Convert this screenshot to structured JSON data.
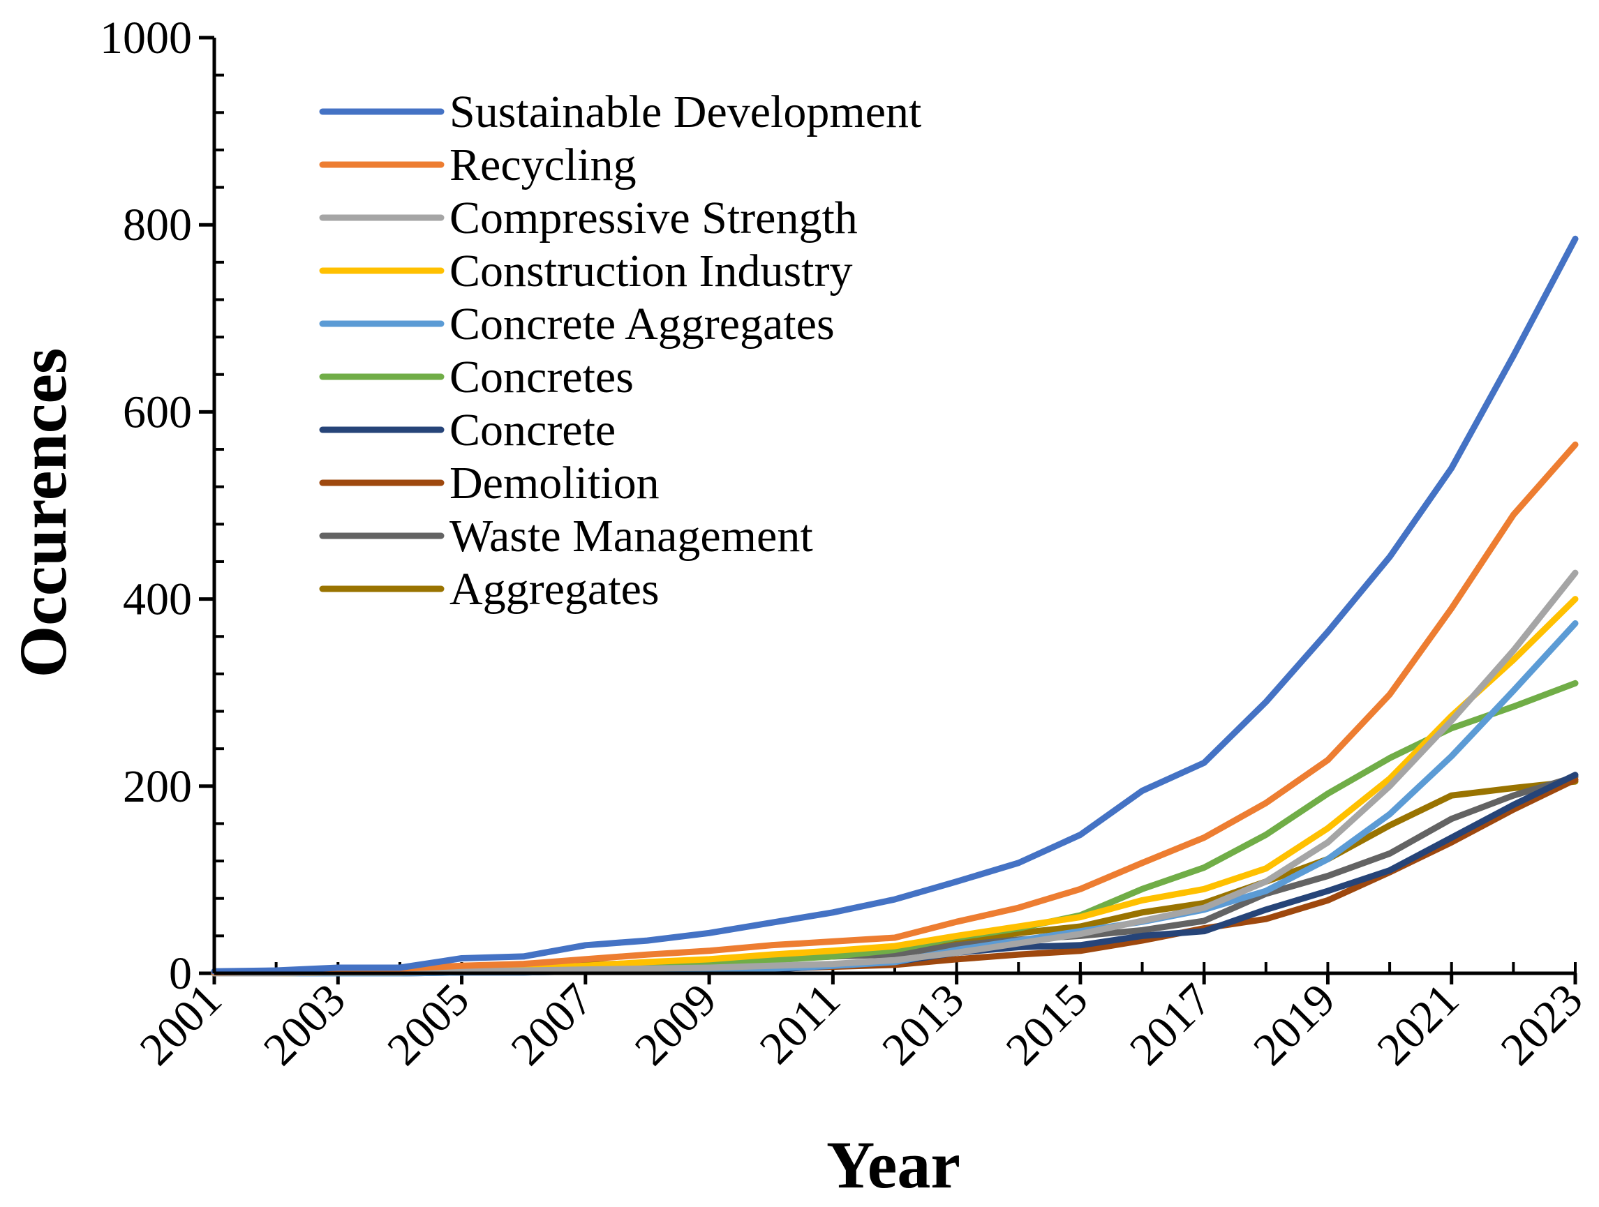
{
  "chart_data": {
    "type": "line",
    "title": "",
    "xlabel": "Year",
    "ylabel": "Occurences",
    "xlim": [
      2001,
      2023
    ],
    "ylim": [
      0,
      1000
    ],
    "x_ticks": [
      "2001",
      "2003",
      "2005",
      "2007",
      "2009",
      "2011",
      "2013",
      "2015",
      "2017",
      "2019",
      "2021",
      "2023"
    ],
    "y_ticks": [
      "0",
      "200",
      "400",
      "600",
      "800",
      "1000"
    ],
    "legend_position": "top-left",
    "x": [
      2001,
      2002,
      2003,
      2004,
      2005,
      2006,
      2007,
      2008,
      2009,
      2010,
      2011,
      2012,
      2013,
      2014,
      2015,
      2016,
      2017,
      2018,
      2019,
      2020,
      2021,
      2022,
      2023
    ],
    "series": [
      {
        "name": "Sustainable Development",
        "color": "#4472C4",
        "values": [
          2,
          3,
          6,
          6,
          16,
          18,
          30,
          35,
          43,
          54,
          65,
          79,
          98,
          118,
          148,
          195,
          225,
          290,
          365,
          445,
          540,
          660,
          785
        ]
      },
      {
        "name": "Recycling",
        "color": "#ED7D31",
        "values": [
          1,
          2,
          5,
          5,
          8,
          10,
          15,
          20,
          24,
          30,
          34,
          38,
          55,
          70,
          90,
          118,
          145,
          182,
          228,
          298,
          390,
          490,
          565
        ]
      },
      {
        "name": "Compressive Strength",
        "color": "#A5A5A5",
        "values": [
          0,
          0,
          1,
          1,
          2,
          3,
          4,
          5,
          6,
          8,
          10,
          14,
          22,
          32,
          42,
          56,
          70,
          98,
          140,
          200,
          270,
          345,
          428
        ]
      },
      {
        "name": "Construction Industry",
        "color": "#FFC000",
        "values": [
          0,
          0,
          1,
          1,
          3,
          5,
          8,
          12,
          15,
          20,
          24,
          29,
          40,
          50,
          60,
          78,
          90,
          112,
          155,
          208,
          275,
          335,
          400
        ]
      },
      {
        "name": "Concrete Aggregates",
        "color": "#5B9BD5",
        "values": [
          0,
          0,
          0,
          0,
          1,
          1,
          2,
          3,
          4,
          5,
          8,
          12,
          25,
          35,
          45,
          55,
          68,
          88,
          122,
          170,
          232,
          302,
          374
        ]
      },
      {
        "name": "Concretes",
        "color": "#70AD47",
        "values": [
          1,
          1,
          2,
          2,
          4,
          5,
          7,
          9,
          11,
          14,
          18,
          25,
          38,
          48,
          62,
          90,
          113,
          148,
          192,
          230,
          262,
          285,
          310
        ]
      },
      {
        "name": "Concrete",
        "color": "#264478",
        "values": [
          0,
          0,
          0,
          0,
          1,
          1,
          2,
          2,
          3,
          4,
          8,
          12,
          22,
          28,
          30,
          40,
          45,
          68,
          88,
          110,
          145,
          180,
          212
        ]
      },
      {
        "name": "Demolition",
        "color": "#9E480E",
        "values": [
          0,
          0,
          1,
          1,
          1,
          2,
          3,
          4,
          4,
          5,
          7,
          9,
          15,
          20,
          24,
          35,
          48,
          58,
          78,
          108,
          140,
          175,
          207
        ]
      },
      {
        "name": "Waste Management",
        "color": "#636363",
        "values": [
          0,
          0,
          1,
          2,
          3,
          5,
          8,
          10,
          12,
          15,
          18,
          20,
          30,
          36,
          40,
          46,
          56,
          85,
          104,
          128,
          165,
          190,
          210
        ]
      },
      {
        "name": "Aggregates",
        "color": "#997300",
        "values": [
          0,
          0,
          1,
          2,
          4,
          6,
          9,
          11,
          13,
          16,
          18,
          22,
          33,
          43,
          50,
          65,
          75,
          98,
          122,
          158,
          190,
          198,
          205
        ]
      }
    ]
  }
}
